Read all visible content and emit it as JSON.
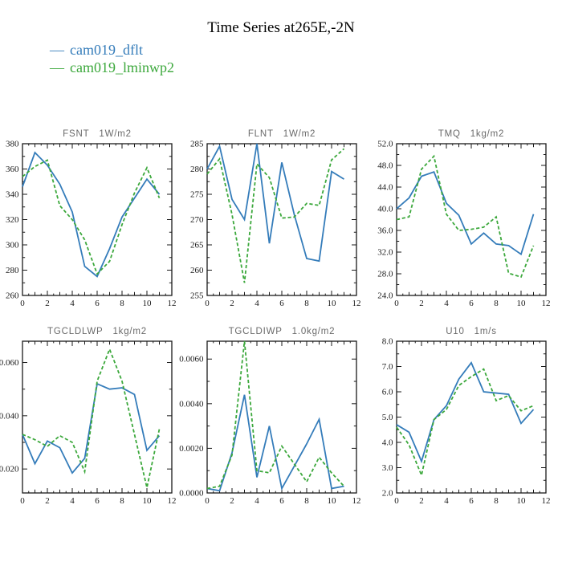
{
  "page": {
    "title": "Time Series at265E,-2N"
  },
  "legend": {
    "items": [
      {
        "label": "cam019_dflt",
        "dash": "—",
        "color": "#347cba",
        "style": "solid"
      },
      {
        "label": "cam019_lminwp2",
        "dash": "—",
        "color": "#3ca83c",
        "style": "dashed"
      }
    ]
  },
  "chart_data": [
    {
      "type": "line",
      "title": "FSNT",
      "units": "1W/m2",
      "x": [
        0,
        1,
        2,
        3,
        4,
        5,
        6,
        7,
        8,
        9,
        10,
        11
      ],
      "xlim": [
        0,
        12
      ],
      "xticks": [
        0,
        2,
        4,
        6,
        8,
        10,
        12
      ],
      "ylim": [
        260,
        380
      ],
      "yminor": 10,
      "yticks": {
        "values": [
          260,
          280,
          300,
          320,
          340,
          360,
          380
        ],
        "labels": [
          "260",
          "280",
          "300",
          "320",
          "340",
          "360",
          "380"
        ]
      },
      "series": [
        {
          "name": "cam019_dflt",
          "values": [
            346,
            373,
            363,
            348,
            326,
            283,
            275,
            297,
            322,
            337,
            352,
            340
          ]
        },
        {
          "name": "cam019_lminwp2",
          "values": [
            354,
            362,
            367,
            331,
            320,
            304,
            277,
            287,
            316,
            341,
            361,
            337
          ]
        }
      ]
    },
    {
      "type": "line",
      "title": "FLNT",
      "units": "1W/m2",
      "x": [
        0,
        1,
        2,
        3,
        4,
        5,
        6,
        7,
        8,
        9,
        10,
        11
      ],
      "xlim": [
        0,
        12
      ],
      "xticks": [
        0,
        2,
        4,
        6,
        8,
        10,
        12
      ],
      "ylim": [
        255,
        285
      ],
      "yminor": 2.5,
      "yticks": {
        "values": [
          255,
          260,
          265,
          270,
          275,
          280,
          285
        ],
        "labels": [
          "255",
          "260",
          "265",
          "270",
          "275",
          "280",
          "285"
        ]
      },
      "series": [
        {
          "name": "cam019_dflt",
          "values": [
            280,
            284.5,
            274,
            270,
            285,
            265.3,
            281.3,
            271,
            262.3,
            261.8,
            279.5,
            278
          ]
        },
        {
          "name": "cam019_lminwp2",
          "values": [
            279,
            282,
            271,
            257.5,
            281,
            278.3,
            270.3,
            270.5,
            273.2,
            272.8,
            281.8,
            284
          ]
        }
      ]
    },
    {
      "type": "line",
      "title": "TMQ",
      "units": "1kg/m2",
      "x": [
        0,
        1,
        2,
        3,
        4,
        5,
        6,
        7,
        8,
        9,
        10,
        11
      ],
      "xlim": [
        0,
        12
      ],
      "xticks": [
        0,
        2,
        4,
        6,
        8,
        10,
        12
      ],
      "ylim": [
        24,
        52
      ],
      "yminor": 2,
      "yticks": {
        "values": [
          24,
          28,
          32,
          36,
          40,
          44,
          48,
          52
        ],
        "labels": [
          "24.0",
          "28.0",
          "32.0",
          "36.0",
          "40.0",
          "44.0",
          "48.0",
          "52.0"
        ]
      },
      "series": [
        {
          "name": "cam019_dflt",
          "values": [
            40,
            42,
            46,
            46.8,
            41,
            38.8,
            33.5,
            35.5,
            33.5,
            33.2,
            31.6,
            39
          ]
        },
        {
          "name": "cam019_lminwp2",
          "values": [
            38,
            38.5,
            47.3,
            49.7,
            39,
            36,
            36.2,
            36.6,
            38.5,
            28.1,
            27.4,
            33.2
          ]
        }
      ]
    },
    {
      "type": "line",
      "title": "TGCLDLWP",
      "units": "1kg/m2",
      "x": [
        0,
        1,
        2,
        3,
        4,
        5,
        6,
        7,
        8,
        9,
        10,
        11
      ],
      "xlim": [
        0,
        12
      ],
      "xticks": [
        0,
        2,
        4,
        6,
        8,
        10,
        12
      ],
      "ylim": [
        0.011,
        0.068
      ],
      "yminor": 0.01,
      "yticks": {
        "values": [
          0.02,
          0.04,
          0.06
        ],
        "labels": [
          "0.020",
          "0.040",
          "0.060"
        ]
      },
      "series": [
        {
          "name": "cam019_dflt",
          "values": [
            0.033,
            0.022,
            0.0305,
            0.028,
            0.0185,
            0.024,
            0.052,
            0.05,
            0.0505,
            0.048,
            0.027,
            0.0325
          ]
        },
        {
          "name": "cam019_lminwp2",
          "values": [
            0.033,
            0.031,
            0.0285,
            0.0325,
            0.03,
            0.019,
            0.053,
            0.065,
            0.053,
            0.033,
            0.013,
            0.035
          ]
        }
      ]
    },
    {
      "type": "line",
      "title": "TGCLDIWP",
      "units": "1.0kg/m2",
      "x": [
        0,
        1,
        2,
        3,
        4,
        5,
        6,
        7,
        8,
        9,
        10,
        11
      ],
      "xlim": [
        0,
        12
      ],
      "xticks": [
        0,
        2,
        4,
        6,
        8,
        10,
        12
      ],
      "ylim": [
        0.0,
        0.0068
      ],
      "yminor": 0.001,
      "yticks": {
        "values": [
          0.0,
          0.002,
          0.004,
          0.006
        ],
        "labels": [
          "0.0000",
          "0.0020",
          "0.0040",
          "0.0060"
        ]
      },
      "series": [
        {
          "name": "cam019_dflt",
          "values": [
            0.0002,
            0.0001,
            0.0018,
            0.0044,
            0.0007,
            0.003,
            0.0002,
            0.0012,
            0.0022,
            0.0033,
            0.0002,
            0.0003
          ]
        },
        {
          "name": "cam019_lminwp2",
          "values": [
            0.0002,
            0.0003,
            0.0017,
            0.0068,
            0.001,
            0.0009,
            0.0021,
            0.0013,
            0.0005,
            0.0016,
            0.0009,
            0.0003
          ]
        }
      ]
    },
    {
      "type": "line",
      "title": "U10",
      "units": "1m/s",
      "x": [
        0,
        1,
        2,
        3,
        4,
        5,
        6,
        7,
        8,
        9,
        10,
        11
      ],
      "xlim": [
        0,
        12
      ],
      "xticks": [
        0,
        2,
        4,
        6,
        8,
        10,
        12
      ],
      "ylim": [
        2,
        8
      ],
      "yminor": 0.5,
      "yticks": {
        "values": [
          2,
          3,
          4,
          5,
          6,
          7,
          8
        ],
        "labels": [
          "2.0",
          "3.0",
          "4.0",
          "5.0",
          "6.0",
          "7.0",
          "8.0"
        ]
      },
      "series": [
        {
          "name": "cam019_dflt",
          "values": [
            4.7,
            4.4,
            3.25,
            4.9,
            5.45,
            6.5,
            7.15,
            6.0,
            5.95,
            5.9,
            4.75,
            5.3
          ]
        },
        {
          "name": "cam019_lminwp2",
          "values": [
            4.6,
            3.9,
            2.7,
            4.9,
            5.3,
            6.25,
            6.6,
            6.9,
            5.65,
            5.85,
            5.25,
            5.45
          ]
        }
      ]
    }
  ]
}
